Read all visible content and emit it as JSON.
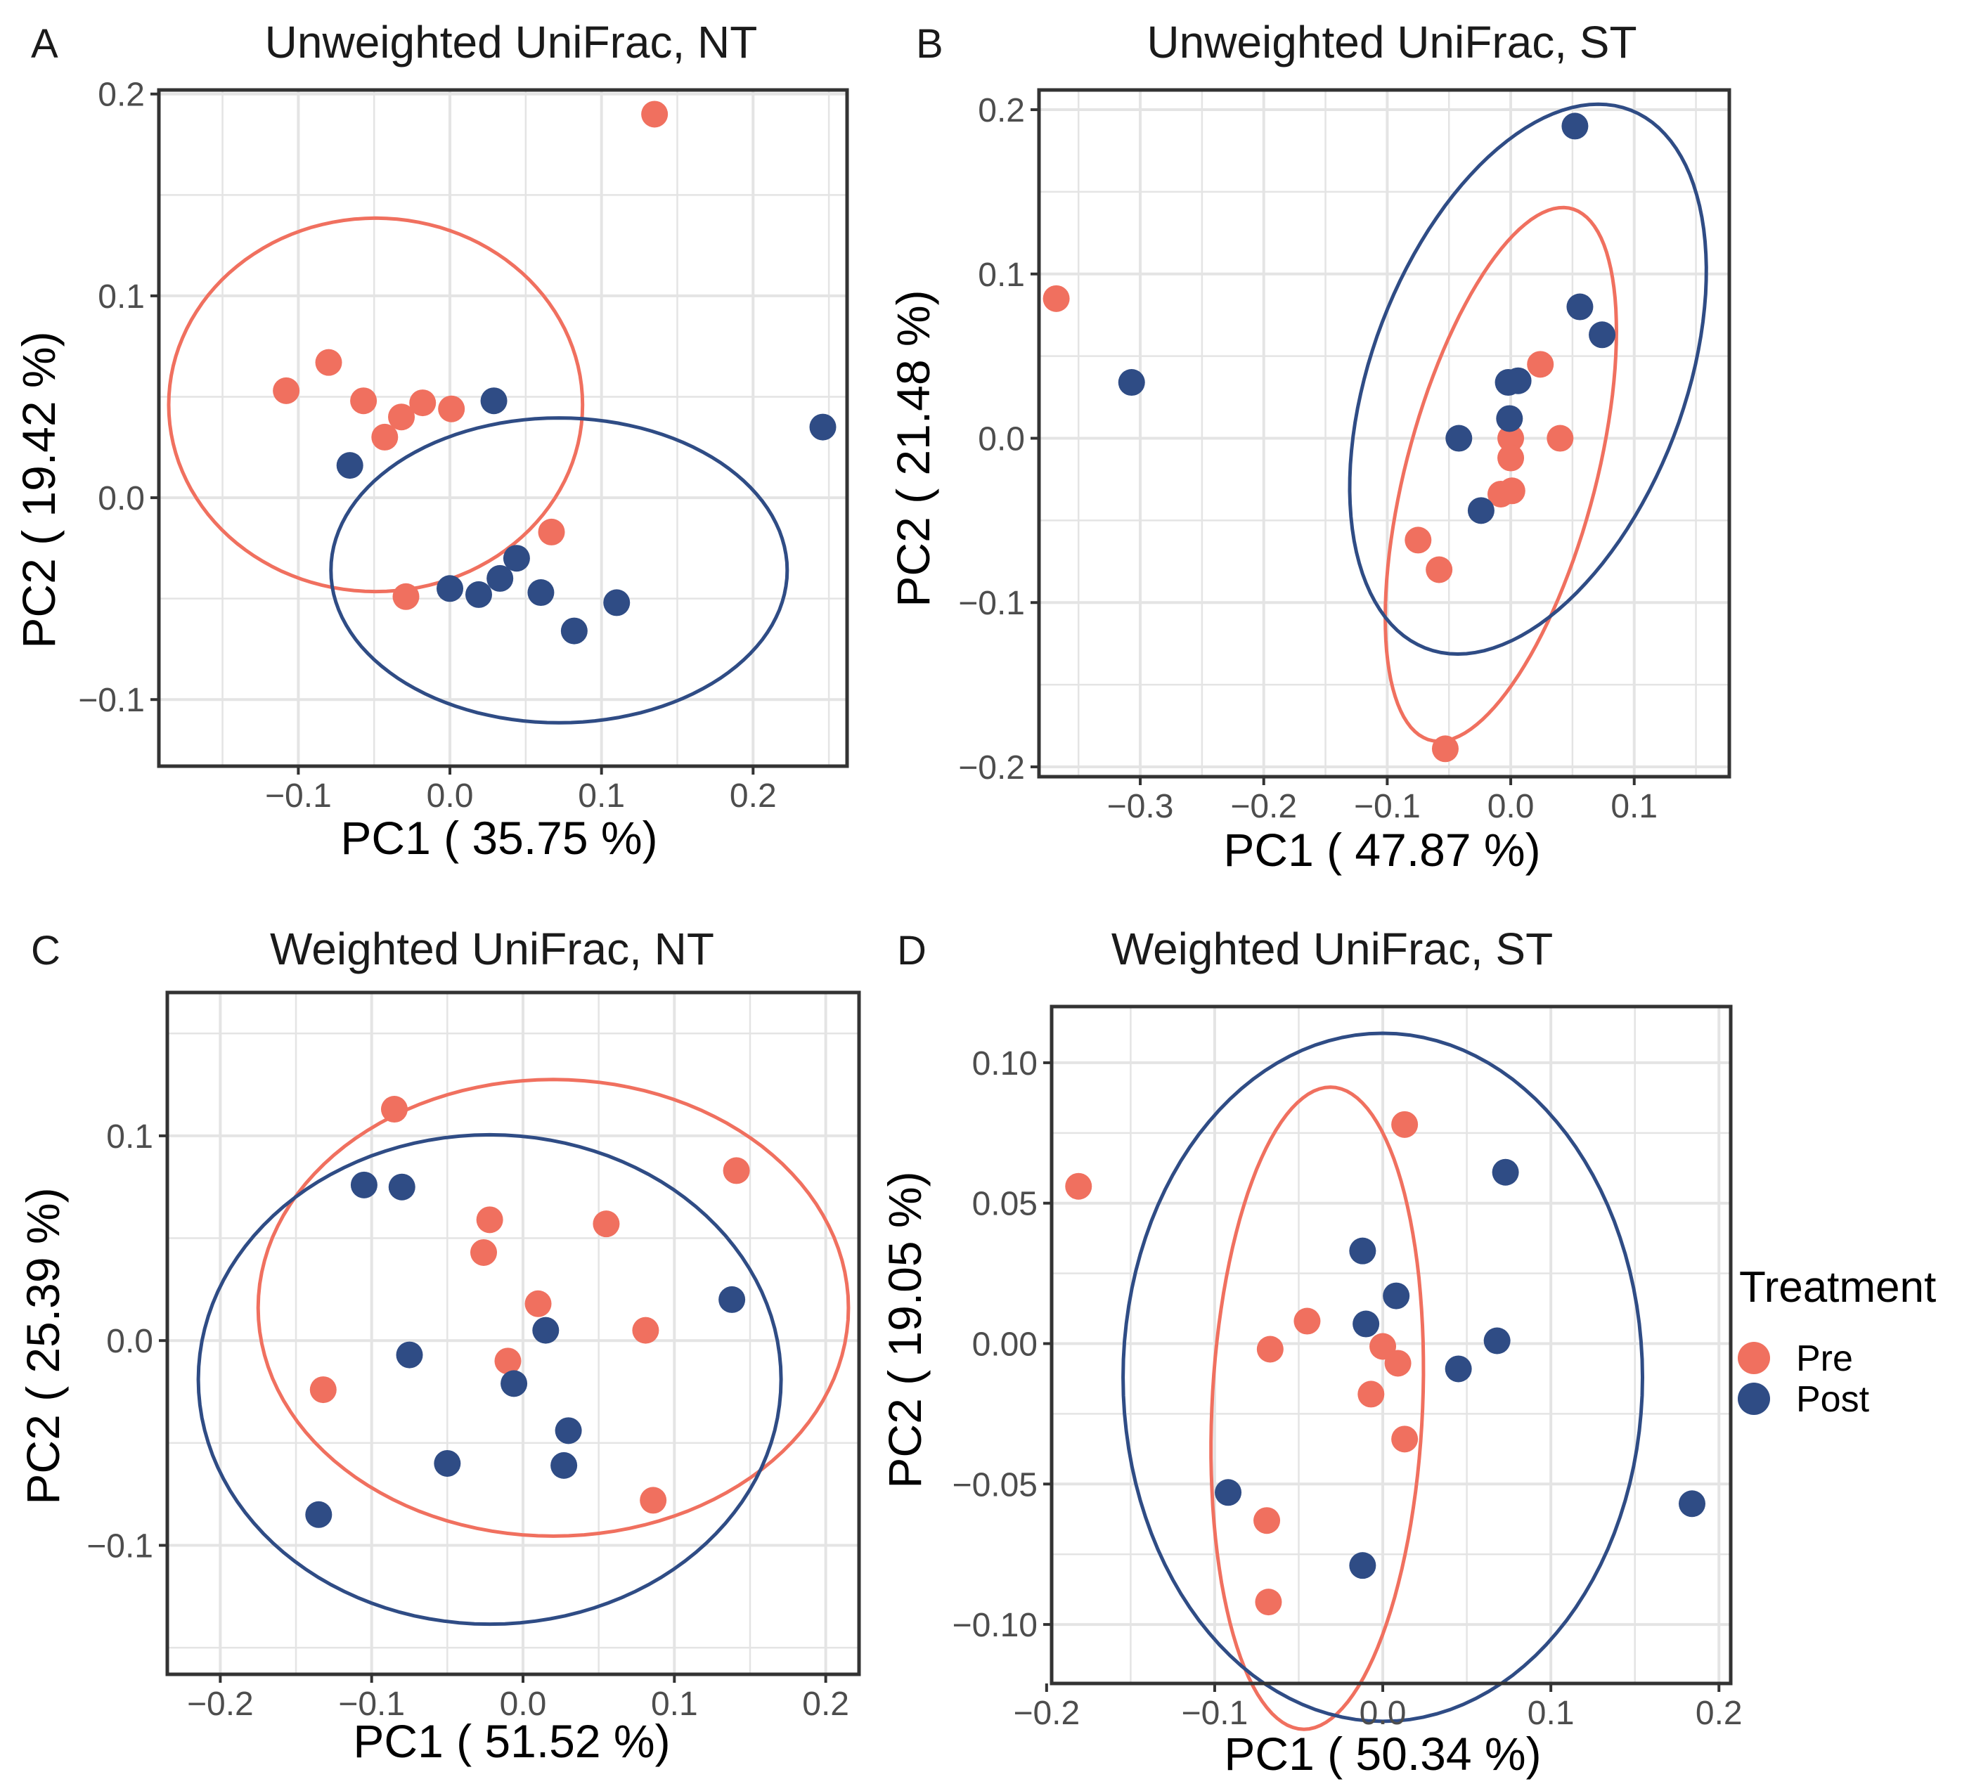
{
  "colors": {
    "pre": "#F0705F",
    "post": "#2F4C85",
    "grid": "#E4E4E4",
    "frame": "#333333"
  },
  "legend": {
    "title": "Treatment",
    "items": [
      {
        "label": "Pre",
        "group": "pre"
      },
      {
        "label": "Post",
        "group": "post"
      }
    ]
  },
  "chart_data": [
    {
      "id": "A",
      "type": "scatter",
      "panel_label": "A",
      "title": "Unweighted UniFrac, NT",
      "xlabel": "PC1 ( 35.75 %)",
      "ylabel": "PC2 ( 19.42 %)",
      "xlim": [
        -0.192,
        0.262
      ],
      "ylim": [
        -0.133,
        0.202
      ],
      "xticks": [
        {
          "v": -0.1,
          "label": "−0.1"
        },
        {
          "v": 0.0,
          "label": "0.0"
        },
        {
          "v": 0.1,
          "label": "0.1"
        },
        {
          "v": 0.2,
          "label": "0.2"
        }
      ],
      "yticks": [
        {
          "v": -0.1,
          "label": "−0.1"
        },
        {
          "v": 0.0,
          "label": "0.0"
        },
        {
          "v": 0.1,
          "label": "0.1"
        },
        {
          "v": 0.2,
          "label": "0.2"
        }
      ],
      "series": [
        {
          "name": "Pre",
          "group": "pre",
          "points": [
            [
              0.135,
              0.19
            ],
            [
              -0.108,
              0.053
            ],
            [
              -0.08,
              0.067
            ],
            [
              -0.057,
              0.048
            ],
            [
              -0.032,
              0.04
            ],
            [
              -0.018,
              0.047
            ],
            [
              0.001,
              0.044
            ],
            [
              -0.043,
              0.03
            ],
            [
              0.067,
              -0.017
            ],
            [
              -0.029,
              -0.049
            ]
          ]
        },
        {
          "name": "Post",
          "group": "post",
          "points": [
            [
              0.246,
              0.035
            ],
            [
              0.029,
              0.048
            ],
            [
              -0.066,
              0.016
            ],
            [
              0.044,
              -0.03
            ],
            [
              0.033,
              -0.04
            ],
            [
              0.019,
              -0.048
            ],
            [
              0.0,
              -0.045
            ],
            [
              0.06,
              -0.047
            ],
            [
              0.11,
              -0.052
            ],
            [
              0.082,
              -0.066
            ]
          ]
        }
      ],
      "ellipses": [
        {
          "group": "pre",
          "center": [
            -0.049,
            0.046
          ],
          "semi_axes": [
            0.1365,
            0.0925
          ],
          "angle_deg": 0
        },
        {
          "group": "post",
          "center": [
            0.072,
            -0.036
          ],
          "semi_axes": [
            0.1505,
            0.0755
          ],
          "angle_deg": 0
        }
      ]
    },
    {
      "id": "B",
      "type": "scatter",
      "panel_label": "B",
      "title": "Unweighted UniFrac, ST",
      "xlabel": "PC1 ( 47.87 %)",
      "ylabel": "PC2 ( 21.48 %)",
      "xlim": [
        -0.382,
        0.177
      ],
      "ylim": [
        -0.206,
        0.212
      ],
      "xticks": [
        {
          "v": -0.3,
          "label": "−0.3"
        },
        {
          "v": -0.2,
          "label": "−0.2"
        },
        {
          "v": -0.1,
          "label": "−0.1"
        },
        {
          "v": 0.0,
          "label": "0.0"
        },
        {
          "v": 0.1,
          "label": "0.1"
        }
      ],
      "yticks": [
        {
          "v": -0.2,
          "label": "−0.2"
        },
        {
          "v": -0.1,
          "label": "−0.1"
        },
        {
          "v": 0.0,
          "label": "0.0"
        },
        {
          "v": 0.1,
          "label": "0.1"
        },
        {
          "v": 0.2,
          "label": "0.2"
        }
      ],
      "series": [
        {
          "name": "Pre",
          "group": "pre",
          "points": [
            [
              -0.368,
              0.085
            ],
            [
              0.024,
              0.045
            ],
            [
              0.0,
              0.0
            ],
            [
              0.04,
              0.0
            ],
            [
              0.0,
              -0.012
            ],
            [
              -0.008,
              -0.034
            ],
            [
              0.001,
              -0.032
            ],
            [
              -0.075,
              -0.062
            ],
            [
              -0.058,
              -0.08
            ],
            [
              -0.053,
              -0.189
            ]
          ]
        },
        {
          "name": "Post",
          "group": "post",
          "points": [
            [
              -0.307,
              0.034
            ],
            [
              0.052,
              0.19
            ],
            [
              0.056,
              0.08
            ],
            [
              0.074,
              0.063
            ],
            [
              0.006,
              0.035
            ],
            [
              -0.002,
              0.034
            ],
            [
              -0.001,
              0.012
            ],
            [
              -0.042,
              0.0
            ],
            [
              -0.024,
              -0.044
            ]
          ]
        }
      ],
      "ellipses": [
        {
          "group": "pre",
          "center": [
            -0.008,
            -0.022
          ],
          "semi_axes": [
            0.172,
            0.0746
          ],
          "angle_deg": 68.6
        },
        {
          "group": "post",
          "center": [
            0.014,
            0.036
          ],
          "semi_axes": [
            0.186,
            0.1194
          ],
          "angle_deg": 55.3
        }
      ]
    },
    {
      "id": "C",
      "type": "scatter",
      "panel_label": "C",
      "title": "Weighted UniFrac, NT",
      "xlabel": "PC1 ( 51.52 %)",
      "ylabel": "PC2 ( 25.39 %)",
      "xlim": [
        -0.235,
        0.222
      ],
      "ylim": [
        -0.163,
        0.17
      ],
      "xticks": [
        {
          "v": -0.2,
          "label": "−0.2"
        },
        {
          "v": -0.1,
          "label": "−0.1"
        },
        {
          "v": 0.0,
          "label": "0.0"
        },
        {
          "v": 0.1,
          "label": "0.1"
        },
        {
          "v": 0.2,
          "label": "0.2"
        }
      ],
      "yticks": [
        {
          "v": -0.1,
          "label": "−0.1"
        },
        {
          "v": 0.0,
          "label": "0.0"
        },
        {
          "v": 0.1,
          "label": "0.1"
        }
      ],
      "series": [
        {
          "name": "Pre",
          "group": "pre",
          "points": [
            [
              -0.085,
              0.113
            ],
            [
              0.141,
              0.083
            ],
            [
              -0.022,
              0.059
            ],
            [
              0.055,
              0.057
            ],
            [
              -0.026,
              0.043
            ],
            [
              0.01,
              0.018
            ],
            [
              0.081,
              0.005
            ],
            [
              -0.01,
              -0.01
            ],
            [
              -0.132,
              -0.024
            ],
            [
              0.086,
              -0.078
            ]
          ]
        },
        {
          "name": "Post",
          "group": "post",
          "points": [
            [
              -0.105,
              0.076
            ],
            [
              -0.08,
              0.075
            ],
            [
              0.138,
              0.02
            ],
            [
              0.015,
              0.005
            ],
            [
              -0.075,
              -0.007
            ],
            [
              -0.006,
              -0.021
            ],
            [
              0.03,
              -0.044
            ],
            [
              -0.05,
              -0.06
            ],
            [
              0.027,
              -0.061
            ],
            [
              -0.135,
              -0.085
            ]
          ]
        }
      ],
      "ellipses": [
        {
          "group": "pre",
          "center": [
            0.02,
            0.016
          ],
          "semi_axes": [
            0.195,
            0.1115
          ],
          "angle_deg": 0
        },
        {
          "group": "post",
          "center": [
            -0.022,
            -0.019
          ],
          "semi_axes": [
            0.1925,
            0.1195
          ],
          "angle_deg": 0
        }
      ]
    },
    {
      "id": "D",
      "type": "scatter",
      "panel_label": "D",
      "title": "Weighted UniFrac, ST",
      "xlabel": "PC1 ( 50.34 %)",
      "ylabel": "PC2 ( 19.05 %)",
      "xlim": [
        -0.197,
        0.207
      ],
      "ylim": [
        -0.121,
        0.12
      ],
      "xticks": [
        {
          "v": -0.2,
          "label": "−0.2"
        },
        {
          "v": -0.1,
          "label": "−0.1"
        },
        {
          "v": 0.0,
          "label": "0.0"
        },
        {
          "v": 0.1,
          "label": "0.1"
        },
        {
          "v": 0.2,
          "label": "0.2"
        }
      ],
      "yticks": [
        {
          "v": -0.1,
          "label": "−0.10"
        },
        {
          "v": -0.05,
          "label": "−0.05"
        },
        {
          "v": 0.0,
          "label": "0.00"
        },
        {
          "v": 0.05,
          "label": "0.05"
        },
        {
          "v": 0.1,
          "label": "0.10"
        }
      ],
      "series": [
        {
          "name": "Pre",
          "group": "pre",
          "points": [
            [
              -0.181,
              0.056
            ],
            [
              0.013,
              0.078
            ],
            [
              -0.045,
              0.008
            ],
            [
              -0.067,
              -0.002
            ],
            [
              0.0,
              -0.001
            ],
            [
              0.009,
              -0.007
            ],
            [
              -0.007,
              -0.018
            ],
            [
              0.013,
              -0.034
            ],
            [
              -0.069,
              -0.063
            ],
            [
              -0.068,
              -0.092
            ]
          ]
        },
        {
          "name": "Post",
          "group": "post",
          "points": [
            [
              0.073,
              0.061
            ],
            [
              -0.012,
              0.033
            ],
            [
              0.008,
              0.017
            ],
            [
              -0.01,
              0.007
            ],
            [
              0.068,
              0.001
            ],
            [
              0.045,
              -0.009
            ],
            [
              -0.092,
              -0.053
            ],
            [
              -0.012,
              -0.079
            ],
            [
              0.184,
              -0.057
            ]
          ]
        }
      ],
      "ellipses": [
        {
          "group": "pre",
          "center": [
            -0.039,
            -0.023
          ],
          "semi_axes": [
            0.1147,
            0.0625
          ],
          "angle_deg": 84.4
        },
        {
          "group": "post",
          "center": [
            0.0,
            -0.012
          ],
          "semi_axes": [
            0.1545,
            0.1225
          ],
          "angle_deg": 0
        }
      ]
    }
  ]
}
